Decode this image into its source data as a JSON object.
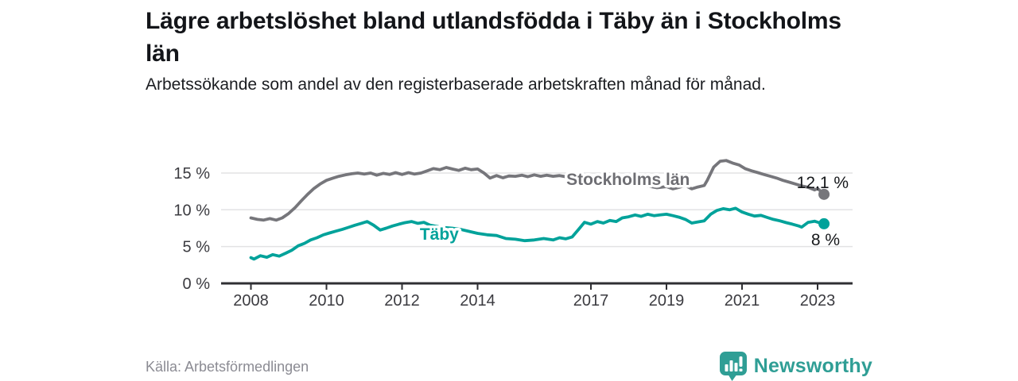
{
  "header": {
    "title": "Lägre arbetslöshet bland utlandsfödda i Täby än i Stockholms län",
    "subtitle": "Arbetssökande som andel av den registerbaserade arbetskraften månad för månad."
  },
  "footer": {
    "source": "Källa: Arbetsförmedlingen",
    "brand": "Newsworthy"
  },
  "colors": {
    "brand_teal": "#2f9e95",
    "background": "#ffffff"
  },
  "chart_data": {
    "type": "line",
    "title": "Lägre arbetslöshet bland utlandsfödda i Täby än i Stockholms län",
    "xlabel": "",
    "ylabel": "",
    "x_unit": "year (monthly data)",
    "xlim": [
      2007.2,
      2023.95
    ],
    "ylim": [
      0,
      17.5
    ],
    "grid": "horizontal",
    "legend_position": "inline-labels",
    "style": {
      "grid_color": "#e2e2e4",
      "axis_color": "#2f2f33",
      "tick_text_color": "#3b3b40",
      "end_label_color": "#16181b"
    },
    "xticks": [
      {
        "value": 2008,
        "label": "2008"
      },
      {
        "value": 2010,
        "label": "2010"
      },
      {
        "value": 2012,
        "label": "2012"
      },
      {
        "value": 2014,
        "label": "2014"
      },
      {
        "value": 2017,
        "label": "2017"
      },
      {
        "value": 2019,
        "label": "2019"
      },
      {
        "value": 2021,
        "label": "2021"
      },
      {
        "value": 2023,
        "label": "2023"
      }
    ],
    "yticks": [
      {
        "value": 0,
        "label": "0 %"
      },
      {
        "value": 5,
        "label": "5 %"
      },
      {
        "value": 10,
        "label": "10 %"
      },
      {
        "value": 15,
        "label": "15 %"
      }
    ],
    "series": [
      {
        "id": "stockholms-lan",
        "name": "Stockholms län",
        "color": "#76767b",
        "label_color": "#6e6e73",
        "label_pos": {
          "year": 2016.35,
          "pct": 13.35
        },
        "end_label": "12,1 %",
        "end_label_offset": {
          "dx": 31,
          "dy": -8
        },
        "end_value": 12.1,
        "points": [
          [
            2008.0,
            8.9
          ],
          [
            2008.17,
            8.7
          ],
          [
            2008.33,
            8.6
          ],
          [
            2008.5,
            8.8
          ],
          [
            2008.67,
            8.6
          ],
          [
            2008.83,
            8.9
          ],
          [
            2009.0,
            9.5
          ],
          [
            2009.17,
            10.3
          ],
          [
            2009.33,
            11.2
          ],
          [
            2009.5,
            12.1
          ],
          [
            2009.67,
            12.9
          ],
          [
            2009.83,
            13.5
          ],
          [
            2010.0,
            14.0
          ],
          [
            2010.17,
            14.3
          ],
          [
            2010.33,
            14.55
          ],
          [
            2010.5,
            14.75
          ],
          [
            2010.67,
            14.9
          ],
          [
            2010.83,
            15.0
          ],
          [
            2011.0,
            14.85
          ],
          [
            2011.17,
            15.0
          ],
          [
            2011.33,
            14.7
          ],
          [
            2011.5,
            14.95
          ],
          [
            2011.67,
            14.8
          ],
          [
            2011.83,
            15.05
          ],
          [
            2012.0,
            14.8
          ],
          [
            2012.17,
            15.05
          ],
          [
            2012.33,
            14.85
          ],
          [
            2012.5,
            15.0
          ],
          [
            2012.67,
            15.3
          ],
          [
            2012.83,
            15.6
          ],
          [
            2013.0,
            15.45
          ],
          [
            2013.17,
            15.75
          ],
          [
            2013.33,
            15.55
          ],
          [
            2013.5,
            15.35
          ],
          [
            2013.67,
            15.65
          ],
          [
            2013.83,
            15.45
          ],
          [
            2014.0,
            15.55
          ],
          [
            2014.17,
            15.0
          ],
          [
            2014.33,
            14.3
          ],
          [
            2014.5,
            14.65
          ],
          [
            2014.67,
            14.35
          ],
          [
            2014.83,
            14.6
          ],
          [
            2015.0,
            14.55
          ],
          [
            2015.17,
            14.7
          ],
          [
            2015.33,
            14.5
          ],
          [
            2015.5,
            14.75
          ],
          [
            2015.67,
            14.55
          ],
          [
            2015.83,
            14.7
          ],
          [
            2016.0,
            14.55
          ],
          [
            2016.17,
            14.65
          ],
          [
            2016.33,
            14.5
          ],
          [
            2016.5,
            14.55
          ],
          [
            2016.67,
            14.4
          ],
          [
            2016.83,
            14.45
          ],
          [
            2017.0,
            14.3
          ],
          [
            2017.25,
            14.15
          ],
          [
            2017.5,
            14.0
          ],
          [
            2017.75,
            13.8
          ],
          [
            2018.0,
            13.6
          ],
          [
            2018.25,
            13.45
          ],
          [
            2018.5,
            13.25
          ],
          [
            2018.75,
            13.0
          ],
          [
            2019.0,
            13.15
          ],
          [
            2019.17,
            12.85
          ],
          [
            2019.33,
            13.05
          ],
          [
            2019.5,
            13.3
          ],
          [
            2019.67,
            12.85
          ],
          [
            2019.83,
            13.1
          ],
          [
            2020.0,
            13.3
          ],
          [
            2020.08,
            14.0
          ],
          [
            2020.25,
            15.8
          ],
          [
            2020.42,
            16.6
          ],
          [
            2020.58,
            16.7
          ],
          [
            2020.75,
            16.35
          ],
          [
            2020.92,
            16.1
          ],
          [
            2021.08,
            15.6
          ],
          [
            2021.25,
            15.3
          ],
          [
            2021.42,
            15.05
          ],
          [
            2021.58,
            14.8
          ],
          [
            2021.75,
            14.55
          ],
          [
            2021.92,
            14.3
          ],
          [
            2022.08,
            14.0
          ],
          [
            2022.25,
            13.75
          ],
          [
            2022.42,
            13.5
          ],
          [
            2022.58,
            13.25
          ],
          [
            2022.75,
            13.05
          ],
          [
            2022.92,
            12.7
          ],
          [
            2023.0,
            12.9
          ],
          [
            2023.17,
            12.1
          ]
        ]
      },
      {
        "id": "taby",
        "name": "Täby",
        "color": "#00a29a",
        "label_color": "#00a29a",
        "label_pos": {
          "year": 2012.47,
          "pct": 5.95
        },
        "end_label": "8 %",
        "end_label_offset": {
          "dx": 20,
          "dy": 27
        },
        "end_value": 8.0,
        "points": [
          [
            2008.0,
            3.5
          ],
          [
            2008.08,
            3.3
          ],
          [
            2008.25,
            3.75
          ],
          [
            2008.42,
            3.55
          ],
          [
            2008.58,
            3.9
          ],
          [
            2008.75,
            3.7
          ],
          [
            2008.92,
            4.1
          ],
          [
            2009.08,
            4.5
          ],
          [
            2009.25,
            5.1
          ],
          [
            2009.42,
            5.45
          ],
          [
            2009.58,
            5.9
          ],
          [
            2009.75,
            6.2
          ],
          [
            2009.92,
            6.6
          ],
          [
            2010.08,
            6.85
          ],
          [
            2010.25,
            7.1
          ],
          [
            2010.42,
            7.35
          ],
          [
            2010.58,
            7.6
          ],
          [
            2010.75,
            7.9
          ],
          [
            2010.92,
            8.15
          ],
          [
            2011.08,
            8.4
          ],
          [
            2011.25,
            7.9
          ],
          [
            2011.42,
            7.25
          ],
          [
            2011.58,
            7.5
          ],
          [
            2011.75,
            7.8
          ],
          [
            2011.92,
            8.05
          ],
          [
            2012.08,
            8.25
          ],
          [
            2012.25,
            8.4
          ],
          [
            2012.42,
            8.15
          ],
          [
            2012.58,
            8.3
          ],
          [
            2012.75,
            7.9
          ],
          [
            2012.92,
            7.75
          ],
          [
            2013.08,
            7.6
          ],
          [
            2013.33,
            7.5
          ],
          [
            2013.58,
            7.3
          ],
          [
            2013.83,
            7.0
          ],
          [
            2014.0,
            6.8
          ],
          [
            2014.25,
            6.6
          ],
          [
            2014.5,
            6.5
          ],
          [
            2014.75,
            6.1
          ],
          [
            2015.0,
            6.0
          ],
          [
            2015.25,
            5.8
          ],
          [
            2015.5,
            5.9
          ],
          [
            2015.75,
            6.1
          ],
          [
            2016.0,
            5.9
          ],
          [
            2016.17,
            6.2
          ],
          [
            2016.33,
            6.05
          ],
          [
            2016.5,
            6.3
          ],
          [
            2016.67,
            7.3
          ],
          [
            2016.83,
            8.3
          ],
          [
            2017.0,
            8.05
          ],
          [
            2017.17,
            8.4
          ],
          [
            2017.33,
            8.2
          ],
          [
            2017.5,
            8.55
          ],
          [
            2017.67,
            8.4
          ],
          [
            2017.83,
            8.9
          ],
          [
            2018.0,
            9.05
          ],
          [
            2018.17,
            9.3
          ],
          [
            2018.33,
            9.1
          ],
          [
            2018.5,
            9.4
          ],
          [
            2018.67,
            9.2
          ],
          [
            2018.83,
            9.3
          ],
          [
            2019.0,
            9.4
          ],
          [
            2019.17,
            9.2
          ],
          [
            2019.33,
            9.0
          ],
          [
            2019.5,
            8.7
          ],
          [
            2019.67,
            8.2
          ],
          [
            2019.83,
            8.35
          ],
          [
            2020.0,
            8.5
          ],
          [
            2020.17,
            9.4
          ],
          [
            2020.33,
            9.9
          ],
          [
            2020.5,
            10.15
          ],
          [
            2020.67,
            10.0
          ],
          [
            2020.83,
            10.2
          ],
          [
            2021.0,
            9.7
          ],
          [
            2021.17,
            9.4
          ],
          [
            2021.33,
            9.15
          ],
          [
            2021.5,
            9.25
          ],
          [
            2021.67,
            8.95
          ],
          [
            2021.83,
            8.7
          ],
          [
            2022.0,
            8.5
          ],
          [
            2022.17,
            8.25
          ],
          [
            2022.33,
            8.05
          ],
          [
            2022.5,
            7.8
          ],
          [
            2022.58,
            7.65
          ],
          [
            2022.75,
            8.3
          ],
          [
            2022.92,
            8.45
          ],
          [
            2023.04,
            8.25
          ],
          [
            2023.17,
            8.1
          ]
        ]
      }
    ]
  }
}
